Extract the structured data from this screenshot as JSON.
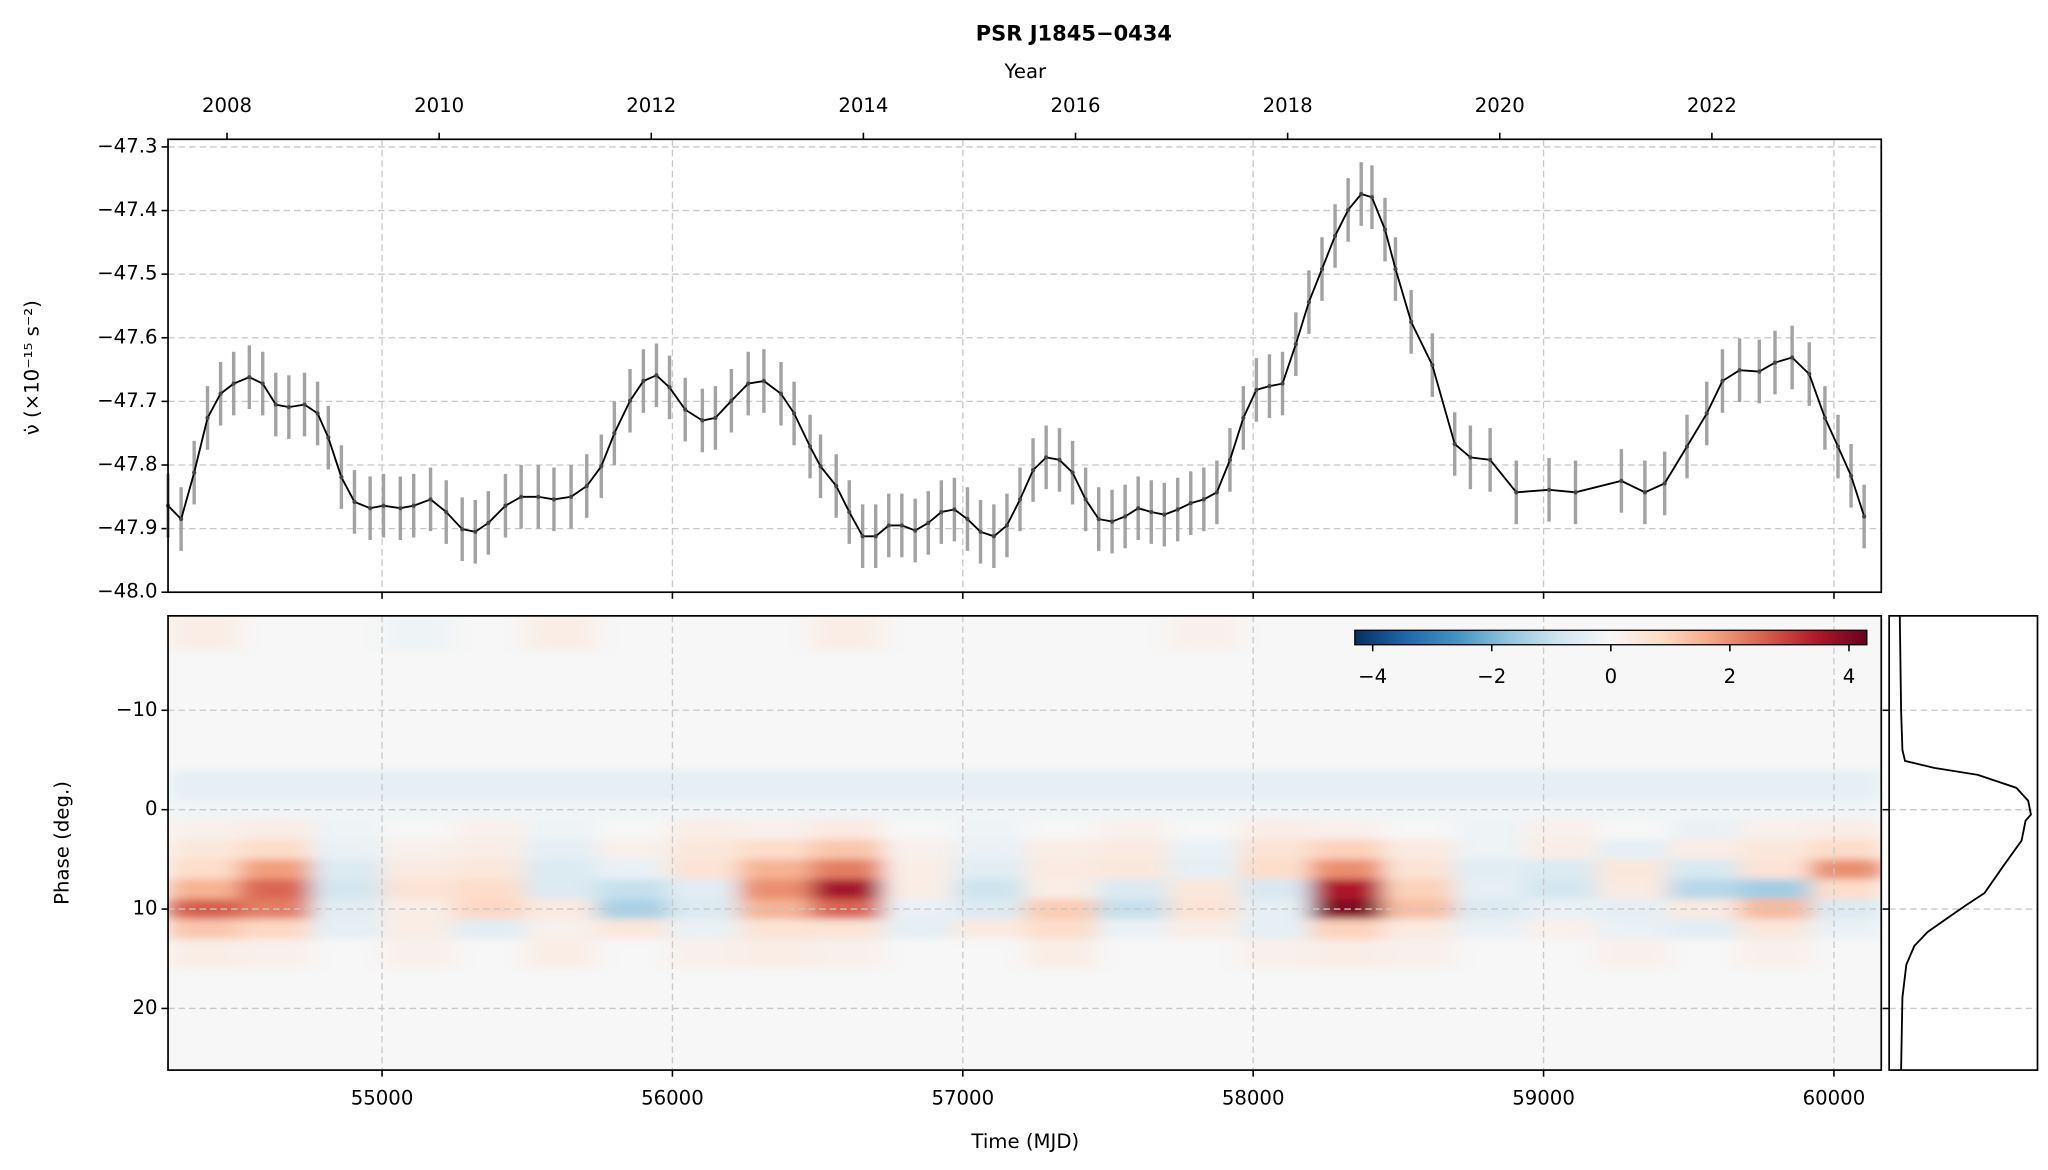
{
  "chart_data": [
    {
      "type": "errorbar",
      "title": "PSR J1845−0434",
      "x2label": "Year",
      "ylabel": "ν̇ (×10⁻¹⁵ s⁻²)",
      "xlim": [
        54263,
        60163
      ],
      "x2lim": [
        2007.444,
        2023.597
      ],
      "x2ticks": [
        2008,
        2010,
        2012,
        2014,
        2016,
        2018,
        2020,
        2022
      ],
      "ylim": [
        -48.0,
        -47.288
      ],
      "yticks": [
        {
          "value": -48.0,
          "label": "−48.0"
        },
        {
          "value": -47.9,
          "label": "−47.9"
        },
        {
          "value": -47.8,
          "label": "−47.8"
        },
        {
          "value": -47.7,
          "label": "−47.7"
        },
        {
          "value": -47.6,
          "label": "−47.6"
        },
        {
          "value": -47.5,
          "label": "−47.5"
        },
        {
          "value": -47.4,
          "label": "−47.4"
        },
        {
          "value": -47.3,
          "label": "−47.3"
        }
      ],
      "grid": true,
      "series": [
        {
          "color": "#000000",
          "error_color": "#999999",
          "yerr": 0.05,
          "x": [
            54263,
            54308,
            54353,
            54399,
            54444,
            54489,
            54543,
            54589,
            54634,
            54679,
            54733,
            54778,
            54815,
            54860,
            54905,
            54959,
            55005,
            55063,
            55109,
            55167,
            55221,
            55276,
            55321,
            55366,
            55425,
            55479,
            55538,
            55592,
            55651,
            55705,
            55755,
            55800,
            55854,
            55900,
            55945,
            55990,
            56044,
            56103,
            56148,
            56203,
            56261,
            56315,
            56374,
            56419,
            56474,
            56510,
            56564,
            56609,
            56655,
            56700,
            56745,
            56790,
            56836,
            56881,
            56926,
            56971,
            57016,
            57061,
            57107,
            57152,
            57197,
            57242,
            57287,
            57333,
            57378,
            57423,
            57468,
            57514,
            57559,
            57604,
            57649,
            57694,
            57740,
            57785,
            57830,
            57875,
            57920,
            57966,
            58011,
            58056,
            58101,
            58147,
            58192,
            58237,
            58282,
            58327,
            58372,
            58409,
            58454,
            58490,
            58544,
            58617,
            58694,
            58748,
            58816,
            58906,
            59019,
            59110,
            59268,
            59349,
            59417,
            59494,
            59562,
            59616,
            59675,
            59743,
            59797,
            59856,
            59915,
            59969,
            60014,
            60059,
            60104
          ],
          "values": [
            -47.864,
            -47.885,
            -47.812,
            -47.726,
            -47.688,
            -47.672,
            -47.662,
            -47.672,
            -47.705,
            -47.709,
            -47.705,
            -47.719,
            -47.757,
            -47.819,
            -47.858,
            -47.868,
            -47.864,
            -47.868,
            -47.864,
            -47.854,
            -47.874,
            -47.901,
            -47.905,
            -47.891,
            -47.864,
            -47.85,
            -47.85,
            -47.854,
            -47.85,
            -47.833,
            -47.802,
            -47.75,
            -47.699,
            -47.668,
            -47.659,
            -47.678,
            -47.713,
            -47.73,
            -47.726,
            -47.699,
            -47.672,
            -47.668,
            -47.688,
            -47.719,
            -47.771,
            -47.802,
            -47.833,
            -47.874,
            -47.912,
            -47.912,
            -47.895,
            -47.895,
            -47.903,
            -47.891,
            -47.874,
            -47.87,
            -47.885,
            -47.905,
            -47.912,
            -47.895,
            -47.854,
            -47.808,
            -47.788,
            -47.792,
            -47.812,
            -47.854,
            -47.885,
            -47.889,
            -47.881,
            -47.868,
            -47.874,
            -47.878,
            -47.87,
            -47.86,
            -47.854,
            -47.843,
            -47.792,
            -47.726,
            -47.682,
            -47.676,
            -47.672,
            -47.61,
            -47.544,
            -47.492,
            -47.44,
            -47.399,
            -47.374,
            -47.379,
            -47.43,
            -47.492,
            -47.575,
            -47.643,
            -47.767,
            -47.788,
            -47.792,
            -47.843,
            -47.839,
            -47.843,
            -47.825,
            -47.843,
            -47.829,
            -47.771,
            -47.719,
            -47.668,
            -47.651,
            -47.653,
            -47.639,
            -47.631,
            -47.657,
            -47.726,
            -47.771,
            -47.817,
            -47.881
          ]
        }
      ]
    },
    {
      "type": "heatmap",
      "xlabel": "Time (MJD)",
      "ylabel": "Phase (deg.)",
      "xlim": [
        54263,
        60163
      ],
      "xticks": [
        55000,
        56000,
        57000,
        58000,
        59000,
        60000
      ],
      "ylim": [
        26.2,
        -19.5
      ],
      "yticks": [
        {
          "value": -10,
          "label": "−10"
        },
        0,
        10,
        20
      ],
      "grid": true,
      "colormap": "RdBu_r",
      "clim": [
        -4.3,
        4.3
      ],
      "cticks": [
        {
          "value": -4,
          "label": "−4"
        },
        {
          "value": -2,
          "label": "−2"
        },
        0,
        2,
        4
      ],
      "x_edges": [
        54263,
        54509,
        54755,
        55001,
        55247,
        55493,
        55739,
        55985,
        56231,
        56477,
        56723,
        56969,
        57215,
        57461,
        57707,
        57953,
        58199,
        58445,
        58691,
        58937,
        59183,
        59429,
        59675,
        59921,
        60167
      ],
      "phase_edges": [
        -19.5,
        -16,
        -4,
        -1,
        1,
        3,
        5,
        7,
        9,
        11,
        13,
        16,
        26.2
      ],
      "values": [
        [
          0.3,
          0,
          0,
          -0.2,
          0,
          0.3,
          0,
          0,
          0,
          0.3,
          0,
          0,
          0,
          0,
          0.2,
          0,
          0,
          0,
          0,
          0,
          0,
          0,
          0,
          0
        ],
        [
          0,
          0,
          0,
          0,
          0,
          0,
          0,
          0,
          0,
          0,
          0,
          0,
          0,
          0,
          0,
          0,
          0,
          0,
          0,
          0,
          0,
          0,
          0,
          0
        ],
        [
          -0.4,
          -0.4,
          -0.4,
          -0.4,
          -0.4,
          -0.4,
          -0.4,
          -0.4,
          -0.4,
          -0.4,
          -0.4,
          -0.4,
          -0.4,
          -0.4,
          -0.4,
          -0.4,
          -0.4,
          -0.4,
          -0.4,
          -0.4,
          -0.4,
          -0.4,
          -0.4,
          -0.4
        ],
        [
          -0.15,
          -0.15,
          -0.15,
          -0.15,
          -0.15,
          -0.15,
          -0.15,
          -0.15,
          -0.15,
          -0.15,
          -0.15,
          -0.15,
          -0.15,
          -0.15,
          -0.15,
          -0.15,
          -0.15,
          -0.15,
          -0.15,
          -0.15,
          -0.15,
          -0.15,
          -0.15,
          -0.15
        ],
        [
          0.2,
          0.3,
          -0.2,
          0,
          0.2,
          -0.2,
          0,
          0.3,
          0.2,
          0.4,
          0,
          -0.2,
          0,
          0.2,
          0,
          0.3,
          0.2,
          0,
          -0.2,
          0.2,
          0,
          -0.3,
          0.2,
          0.3
        ],
        [
          0.5,
          0.8,
          -0.3,
          0.2,
          0.3,
          -0.4,
          0.2,
          0.5,
          0.8,
          1.2,
          0.2,
          -0.3,
          0.3,
          0.4,
          -0.3,
          0.6,
          1.0,
          0.4,
          -0.2,
          0.3,
          -0.4,
          0.3,
          0.5,
          0.8
        ],
        [
          0.8,
          1.8,
          -0.6,
          0.4,
          0.5,
          -0.6,
          -0.3,
          0.6,
          1.5,
          2.2,
          0.3,
          -0.5,
          0.4,
          0.5,
          -0.4,
          0.8,
          2.0,
          0.6,
          -0.5,
          -0.6,
          0.5,
          -0.7,
          0.6,
          2.0
        ],
        [
          1.5,
          2.5,
          -0.8,
          0.6,
          0.8,
          -0.6,
          -1.0,
          -0.5,
          2.0,
          3.6,
          0.3,
          -0.9,
          0.3,
          -0.6,
          0.5,
          -0.7,
          3.5,
          1.0,
          -0.4,
          -0.8,
          0.4,
          -1.2,
          -1.5,
          0.8
        ],
        [
          2.6,
          2.2,
          -0.5,
          0.3,
          0.9,
          0.4,
          -1.4,
          -0.6,
          1.5,
          2.5,
          -0.3,
          -0.6,
          1.1,
          -1.0,
          0.6,
          -0.4,
          4.0,
          1.3,
          -0.6,
          -0.3,
          -0.4,
          0.4,
          1.4,
          -0.6
        ],
        [
          1.2,
          0.9,
          -0.4,
          0.3,
          -0.5,
          0.2,
          0.5,
          -0.3,
          0.6,
          0.6,
          -0.4,
          0.4,
          0.8,
          -0.3,
          0.3,
          -0.4,
          1.0,
          0.4,
          -0.3,
          0.2,
          -0.3,
          -0.5,
          0.5,
          -0.3
        ],
        [
          0.3,
          0.2,
          0,
          0.2,
          0,
          0.3,
          0,
          0.2,
          0.3,
          0.2,
          0,
          0,
          0.3,
          0,
          0,
          0.2,
          0.3,
          0.2,
          0,
          0,
          0.2,
          0,
          0.2,
          0
        ],
        [
          0,
          0,
          0,
          0,
          0,
          0,
          0,
          0,
          0,
          0,
          0,
          0,
          0,
          0,
          0,
          0,
          0,
          0,
          0,
          0,
          0,
          0,
          0,
          0
        ]
      ]
    },
    {
      "type": "line",
      "color": "#000000",
      "xlim": [
        -0.07,
        1.05
      ],
      "ylim": [
        26.2,
        -19.5
      ],
      "x": [
        0.01,
        0.02,
        0.03,
        0.05,
        0.27,
        0.6,
        0.89,
        0.98,
        1.0,
        0.96,
        0.93,
        0.79,
        0.65,
        0.5,
        0.36,
        0.22,
        0.12,
        0.06,
        0.03,
        0.02
      ],
      "y": [
        -19.5,
        -10,
        -6,
        -4.9,
        -4.2,
        -3.5,
        -2.2,
        -0.9,
        0.5,
        1.1,
        3.1,
        5.7,
        8.4,
        9.7,
        11,
        12.3,
        13.7,
        15.6,
        18.9,
        26.2
      ]
    }
  ]
}
